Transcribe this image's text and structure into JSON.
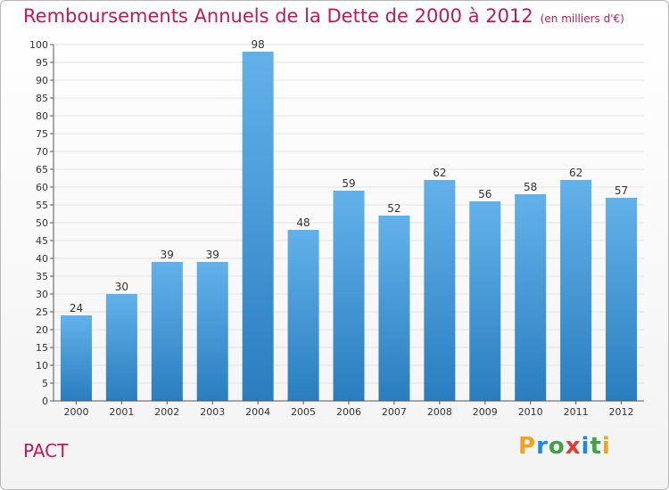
{
  "header": {
    "title": "Remboursements Annuels de la Dette de 2000 à 2012",
    "unit": "(en milliers d'€)"
  },
  "footer": {
    "commune": "PACT",
    "logo": "Proxiti",
    "logo_letters": [
      "P",
      "r",
      "o",
      "x",
      "i",
      "t",
      "i"
    ]
  },
  "colors": {
    "title": "#c2185b",
    "bar_top": "#62b1ea",
    "bar_bottom": "#2a7ebf",
    "axis": "#555555",
    "grid": "#e3e3e3"
  },
  "chart_data": {
    "type": "bar",
    "title": "Remboursements Annuels de la Dette de 2000 à 2012",
    "xlabel": "",
    "ylabel": "",
    "categories": [
      "2000",
      "2001",
      "2002",
      "2003",
      "2004",
      "2005",
      "2006",
      "2007",
      "2008",
      "2009",
      "2010",
      "2011",
      "2012"
    ],
    "values": [
      24,
      30,
      39,
      39,
      98,
      48,
      59,
      52,
      62,
      56,
      58,
      62,
      57
    ],
    "ylim": [
      0,
      100
    ],
    "yticks": [
      0,
      5,
      10,
      15,
      20,
      25,
      30,
      35,
      40,
      45,
      50,
      55,
      60,
      65,
      70,
      75,
      80,
      85,
      90,
      95,
      100
    ],
    "grid": true,
    "data_labels": true,
    "legend": "none"
  }
}
